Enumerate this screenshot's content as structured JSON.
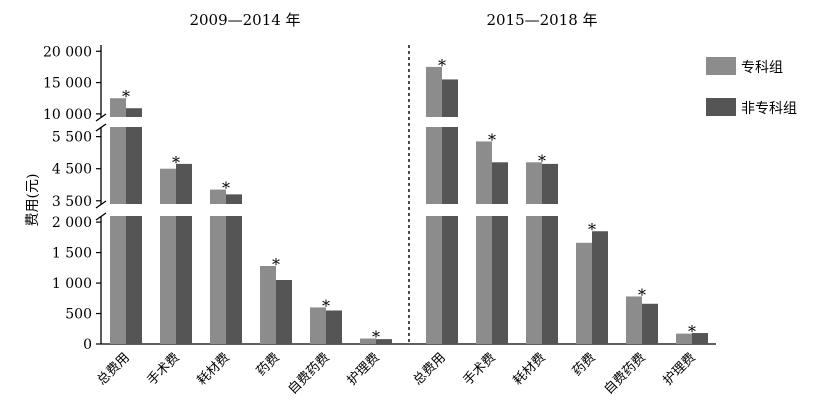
{
  "chart_data": {
    "type": "bar",
    "axis_break": true,
    "ylabel": "费用(元)",
    "ytick_labels": [
      "0",
      "500",
      "1 000",
      "1 500",
      "2 000",
      "3 500",
      "4 500",
      "5 500",
      "10 000",
      "15 000",
      "20 000"
    ],
    "y_segments": [
      {
        "range": [
          0,
          2100
        ]
      },
      {
        "range": [
          3400,
          5800
        ]
      },
      {
        "range": [
          9500,
          21000
        ]
      }
    ],
    "legend_position": "top-right",
    "series": [
      {
        "name": "专科组",
        "color": "#8c8c8c"
      },
      {
        "name": "非专科组",
        "color": "#555555"
      }
    ],
    "groups": [
      {
        "label": "2009—2014 年",
        "categories": [
          "总费用",
          "手术费",
          "耗材费",
          "药费",
          "自费药费",
          "护理费"
        ],
        "values": [
          [
            12500,
            10900
          ],
          [
            4500,
            4650
          ],
          [
            3850,
            3700
          ],
          [
            1280,
            1050
          ],
          [
            600,
            550
          ],
          [
            90,
            80
          ]
        ],
        "significance": [
          "*",
          "*",
          "*",
          "*",
          "*",
          "*"
        ]
      },
      {
        "label": "2015—2018 年",
        "categories": [
          "总费用",
          "手术费",
          "耗材费",
          "药费",
          "自费药费",
          "护理费"
        ],
        "values": [
          [
            17500,
            15500
          ],
          [
            5350,
            4700
          ],
          [
            4700,
            4650
          ],
          [
            1660,
            1850
          ],
          [
            780,
            660
          ],
          [
            170,
            180
          ]
        ],
        "significance": [
          "*",
          "*",
          "*",
          "*",
          "*",
          "*"
        ]
      }
    ]
  }
}
